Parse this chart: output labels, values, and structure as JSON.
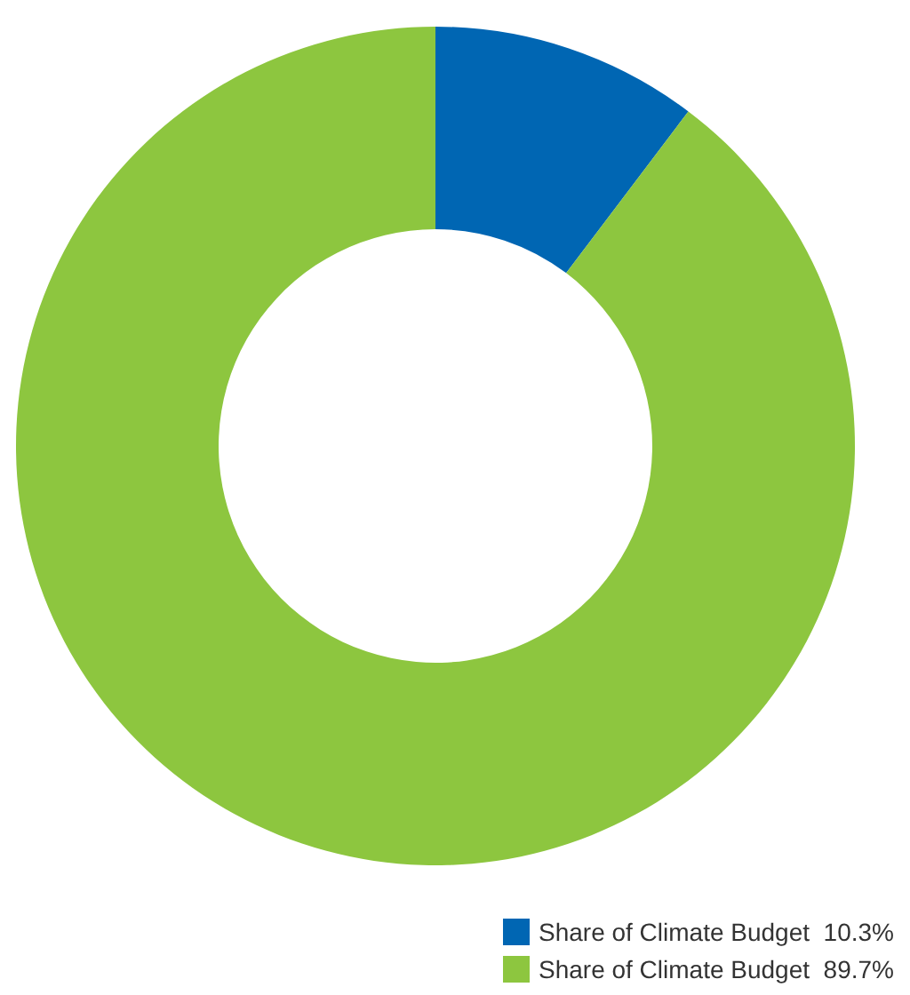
{
  "chart_data": {
    "type": "donut",
    "categories": [
      "Share of Climate Budget",
      "Share of Climate Budget"
    ],
    "values": [
      10.3,
      89.7
    ],
    "value_labels": [
      "10.3%",
      "89.7%"
    ],
    "colors": [
      "#0066b3",
      "#8dc63f"
    ],
    "legend": "bottom right"
  }
}
